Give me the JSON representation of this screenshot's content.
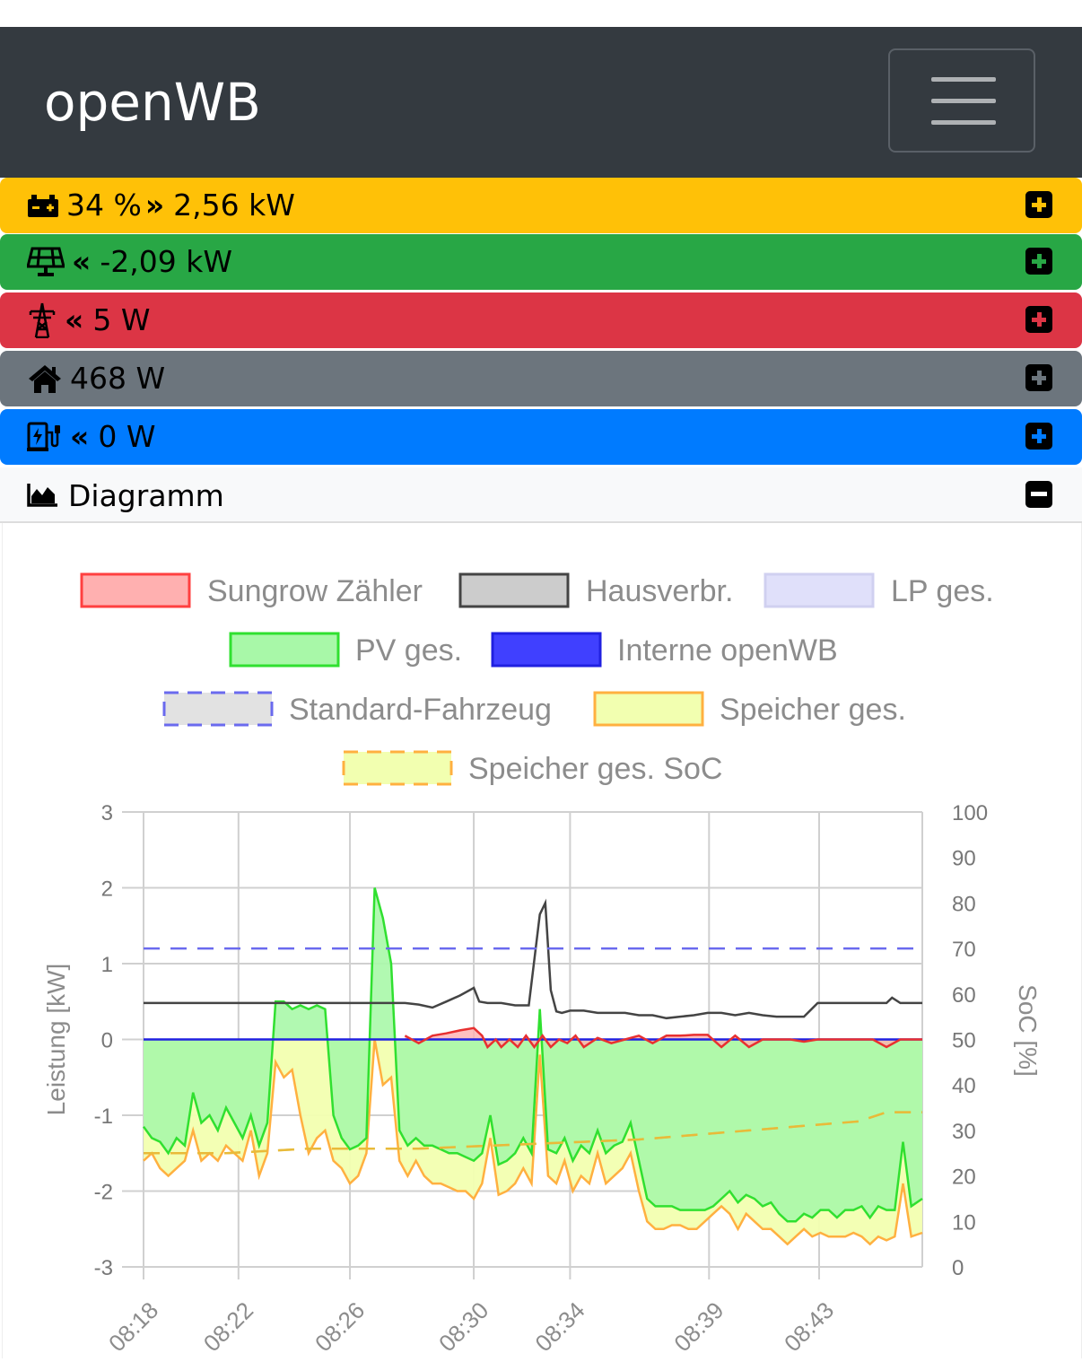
{
  "app": {
    "brand": "openWB"
  },
  "status_bars": [
    {
      "name": "battery",
      "icon": "car-battery-icon",
      "direction": "»",
      "text": "34 % ",
      "value": "2,56 kW",
      "color": "#ffc107",
      "plus_color": "#ffc107"
    },
    {
      "name": "pv",
      "icon": "solar-panel-icon",
      "direction": "«",
      "text": "",
      "value": "-2,09 kW",
      "color": "#28a745",
      "plus_color": "#28a745"
    },
    {
      "name": "grid",
      "icon": "power-pylon-icon",
      "direction": "«",
      "text": "",
      "value": "5 W",
      "color": "#dc3545",
      "plus_color": "#dc3545"
    },
    {
      "name": "house",
      "icon": "home-icon",
      "direction": "",
      "text": "",
      "value": "468 W",
      "color": "#6c757d",
      "plus_color": "#6c757d"
    },
    {
      "name": "chargepoint",
      "icon": "charging-station-icon",
      "direction": "«",
      "text": "",
      "value": "0 W",
      "color": "#007bff",
      "plus_color": "#007bff"
    }
  ],
  "diagram": {
    "title": "Diagramm"
  },
  "chart_data": {
    "type": "line",
    "legend": [
      {
        "label": "Sungrow Zähler",
        "stroke": "#ff4040",
        "fill": "#ffb0b0",
        "dashed": false
      },
      {
        "label": "Hausverbr.",
        "stroke": "#444444",
        "fill": "#cccccc",
        "dashed": false
      },
      {
        "label": "LP ges.",
        "stroke": "#d0d0f0",
        "fill": "#e0e0fa",
        "dashed": false
      },
      {
        "label": "PV ges.",
        "stroke": "#30e030",
        "fill": "#a8f8a8",
        "dashed": false
      },
      {
        "label": "Interne openWB",
        "stroke": "#2020e0",
        "fill": "#4040ff",
        "dashed": false
      },
      {
        "label": "Standard-Fahrzeug",
        "stroke": "#6a6aee",
        "fill": "#e2e2e2",
        "dashed": true
      },
      {
        "label": "Speicher ges.",
        "stroke": "#ffb040",
        "fill": "#f2ffb0",
        "dashed": false
      },
      {
        "label": "Speicher ges. SoC",
        "stroke": "#ffb040",
        "fill": "#f2ffb0",
        "dashed": true
      }
    ],
    "ylabel": "Leistung [kW]",
    "y2label": "SoC [%]",
    "ylim": [
      -3,
      3
    ],
    "y2lim": [
      0,
      100
    ],
    "yticks": [
      "3",
      "2",
      "1",
      "0",
      "-1",
      "-2",
      "-3"
    ],
    "y2ticks": [
      "100",
      "90",
      "80",
      "70",
      "60",
      "50",
      "40",
      "30",
      "20",
      "10",
      "0"
    ],
    "xticks": [
      "08:18",
      "08:22",
      "08:26",
      "08:30",
      "08:34",
      "08:39",
      "08:43"
    ],
    "xlim_minutes": [
      0,
      28.3
    ],
    "xtick_minutes": [
      0,
      3.45,
      7.5,
      12.0,
      15.5,
      20.55,
      24.55
    ],
    "grid": true,
    "series": [
      {
        "name": "PV ges.",
        "x": [
          0,
          0.3,
          0.6,
          0.9,
          1.2,
          1.5,
          1.8,
          2.1,
          2.4,
          2.7,
          3.0,
          3.3,
          3.6,
          3.9,
          4.2,
          4.5,
          4.8,
          5.1,
          5.4,
          5.7,
          6.0,
          6.3,
          6.6,
          6.9,
          7.2,
          7.5,
          7.8,
          8.1,
          8.4,
          8.7,
          9.0,
          9.3,
          9.6,
          9.9,
          10.2,
          10.5,
          10.8,
          11.1,
          11.4,
          11.7,
          12.0,
          12.3,
          12.6,
          12.9,
          13.2,
          13.5,
          13.8,
          14.1,
          14.4,
          14.7,
          15.0,
          15.3,
          15.6,
          15.9,
          16.2,
          16.5,
          16.8,
          17.1,
          17.4,
          17.7,
          18.0,
          18.3,
          18.6,
          18.9,
          19.2,
          19.5,
          19.8,
          20.1,
          20.4,
          20.7,
          21.0,
          21.3,
          21.6,
          21.9,
          22.2,
          22.5,
          22.8,
          23.1,
          23.4,
          23.7,
          24.0,
          24.3,
          24.6,
          24.9,
          25.2,
          25.5,
          25.8,
          26.1,
          26.4,
          26.7,
          27.0,
          27.3,
          27.6,
          27.9,
          28.3
        ],
        "y": [
          -1.15,
          -1.3,
          -1.35,
          -1.5,
          -1.3,
          -1.4,
          -0.7,
          -1.1,
          -1.0,
          -1.2,
          -0.9,
          -1.1,
          -1.3,
          -1.0,
          -1.4,
          -1.1,
          0.5,
          0.5,
          0.4,
          0.45,
          0.4,
          0.45,
          0.4,
          -1.0,
          -1.3,
          -1.45,
          -1.4,
          -1.3,
          2.0,
          1.6,
          1.0,
          -1.2,
          -1.4,
          -1.3,
          -1.4,
          -1.4,
          -1.45,
          -1.5,
          -1.5,
          -1.55,
          -1.6,
          -1.5,
          -1.0,
          -1.65,
          -1.6,
          -1.5,
          -1.3,
          -1.5,
          0.4,
          -1.45,
          -1.5,
          -1.3,
          -1.6,
          -1.4,
          -1.5,
          -1.2,
          -1.5,
          -1.4,
          -1.35,
          -1.1,
          -1.6,
          -2.1,
          -2.2,
          -2.2,
          -2.2,
          -2.25,
          -2.25,
          -2.25,
          -2.25,
          -2.2,
          -2.1,
          -2.0,
          -2.15,
          -2.05,
          -2.1,
          -2.2,
          -2.15,
          -2.3,
          -2.4,
          -2.4,
          -2.3,
          -2.35,
          -2.25,
          -2.25,
          -2.35,
          -2.25,
          -2.25,
          -2.2,
          -2.35,
          -2.2,
          -2.25,
          -2.25,
          -1.35,
          -2.2,
          -2.1
        ]
      },
      {
        "name": "Speicher ges.",
        "x": [
          0,
          0.3,
          0.6,
          0.9,
          1.2,
          1.5,
          1.8,
          2.1,
          2.4,
          2.7,
          3.0,
          3.3,
          3.6,
          3.9,
          4.2,
          4.5,
          4.8,
          5.1,
          5.4,
          5.7,
          6.0,
          6.3,
          6.6,
          6.9,
          7.2,
          7.5,
          7.8,
          8.1,
          8.4,
          8.7,
          9.0,
          9.3,
          9.6,
          9.9,
          10.2,
          10.5,
          10.8,
          11.1,
          11.4,
          11.7,
          12.0,
          12.3,
          12.6,
          12.9,
          13.2,
          13.5,
          13.8,
          14.1,
          14.4,
          14.7,
          15.0,
          15.3,
          15.6,
          15.9,
          16.2,
          16.5,
          16.8,
          17.1,
          17.4,
          17.7,
          18.0,
          18.3,
          18.6,
          18.9,
          19.2,
          19.5,
          19.8,
          20.1,
          20.4,
          20.7,
          21.0,
          21.3,
          21.6,
          21.9,
          22.2,
          22.5,
          22.8,
          23.1,
          23.4,
          23.7,
          24.0,
          24.3,
          24.6,
          24.9,
          25.2,
          25.5,
          25.8,
          26.1,
          26.4,
          26.7,
          27.0,
          27.3,
          27.6,
          27.9,
          28.3
        ],
        "y": [
          -1.6,
          -1.5,
          -1.7,
          -1.8,
          -1.7,
          -1.6,
          -1.2,
          -1.6,
          -1.5,
          -1.6,
          -1.4,
          -1.5,
          -1.6,
          -1.2,
          -1.8,
          -1.5,
          -0.3,
          -0.5,
          -0.4,
          -1.0,
          -1.5,
          -1.3,
          -1.2,
          -1.6,
          -1.7,
          -1.9,
          -1.8,
          -1.5,
          0.0,
          -0.6,
          -0.5,
          -1.6,
          -1.8,
          -1.6,
          -1.8,
          -1.9,
          -1.9,
          -1.95,
          -2.0,
          -2.0,
          -2.1,
          -1.9,
          -1.3,
          -2.05,
          -2.0,
          -1.9,
          -1.7,
          -1.9,
          -0.2,
          -1.8,
          -1.9,
          -1.6,
          -2.0,
          -1.8,
          -1.9,
          -1.5,
          -1.9,
          -1.8,
          -1.7,
          -1.5,
          -2.0,
          -2.4,
          -2.5,
          -2.5,
          -2.45,
          -2.45,
          -2.5,
          -2.5,
          -2.4,
          -2.3,
          -2.2,
          -2.3,
          -2.5,
          -2.3,
          -2.4,
          -2.5,
          -2.5,
          -2.6,
          -2.7,
          -2.6,
          -2.5,
          -2.6,
          -2.55,
          -2.6,
          -2.6,
          -2.6,
          -2.55,
          -2.6,
          -2.7,
          -2.6,
          -2.65,
          -2.6,
          -1.9,
          -2.6,
          -2.55
        ]
      },
      {
        "name": "Hausverbr.",
        "x": [
          0,
          1,
          2,
          3,
          4,
          5,
          6,
          7,
          8,
          9,
          9.5,
          10,
          10.5,
          11,
          11.5,
          12,
          12.2,
          12.5,
          13,
          13.5,
          14,
          14.4,
          14.6,
          14.8,
          15.0,
          15.2,
          15.5,
          16,
          16.5,
          17,
          17.5,
          18,
          18.5,
          19,
          19.5,
          20,
          20.5,
          21,
          21.5,
          22,
          22.5,
          23,
          23.5,
          24,
          24.5,
          25,
          25.5,
          26,
          26.5,
          27,
          27.2,
          27.5,
          28,
          28.3
        ],
        "y": [
          0.48,
          0.48,
          0.48,
          0.48,
          0.48,
          0.48,
          0.48,
          0.48,
          0.48,
          0.48,
          0.48,
          0.46,
          0.42,
          0.5,
          0.58,
          0.68,
          0.5,
          0.48,
          0.48,
          0.45,
          0.45,
          1.65,
          1.8,
          0.65,
          0.37,
          0.35,
          0.38,
          0.38,
          0.35,
          0.35,
          0.35,
          0.32,
          0.32,
          0.28,
          0.3,
          0.32,
          0.35,
          0.35,
          0.32,
          0.35,
          0.32,
          0.3,
          0.3,
          0.3,
          0.48,
          0.48,
          0.48,
          0.48,
          0.48,
          0.48,
          0.55,
          0.48,
          0.48,
          0.48
        ]
      },
      {
        "name": "Sungrow Zähler",
        "x": [
          9.5,
          10,
          10.5,
          11,
          11.5,
          12,
          12.3,
          12.5,
          12.8,
          13,
          13.3,
          13.6,
          13.9,
          14.2,
          14.5,
          14.8,
          15.1,
          15.4,
          15.7,
          16,
          16.5,
          17,
          17.5,
          18,
          18.5,
          19,
          19.5,
          20,
          20.5,
          21,
          21.5,
          22,
          22.5,
          23,
          23.5,
          24,
          24.5,
          25,
          25.5,
          26,
          26.5,
          27,
          27.5,
          28,
          28.3
        ],
        "y": [
          0.05,
          -0.05,
          0.05,
          0.08,
          0.12,
          0.15,
          0.05,
          -0.1,
          0.0,
          -0.1,
          0.0,
          -0.1,
          0.05,
          -0.1,
          0.05,
          -0.1,
          0.0,
          -0.05,
          0.05,
          -0.1,
          0.02,
          -0.05,
          0.0,
          0.05,
          -0.05,
          0.05,
          0.05,
          0.06,
          0.06,
          -0.1,
          0.05,
          -0.1,
          0.0,
          0.0,
          0.0,
          -0.03,
          0.0,
          0.0,
          0.0,
          0.0,
          0.0,
          -0.1,
          0.0,
          0.0,
          0.0
        ]
      },
      {
        "name": "Interne openWB",
        "x": [
          0,
          28.3
        ],
        "y": [
          0,
          0
        ]
      },
      {
        "name": "Standard-Fahrzeug",
        "x": [
          0,
          28.3
        ],
        "y": [
          1.2,
          1.2
        ]
      },
      {
        "name": "Speicher ges. SoC",
        "axis": "y2",
        "x": [
          0,
          3,
          6,
          9,
          10,
          12,
          14,
          16,
          18,
          20,
          22,
          24,
          26,
          27,
          28.3
        ],
        "y": [
          25,
          25,
          26,
          26,
          26,
          26.5,
          27,
          27.5,
          28,
          29,
          30,
          31,
          32,
          34,
          34
        ]
      }
    ]
  }
}
